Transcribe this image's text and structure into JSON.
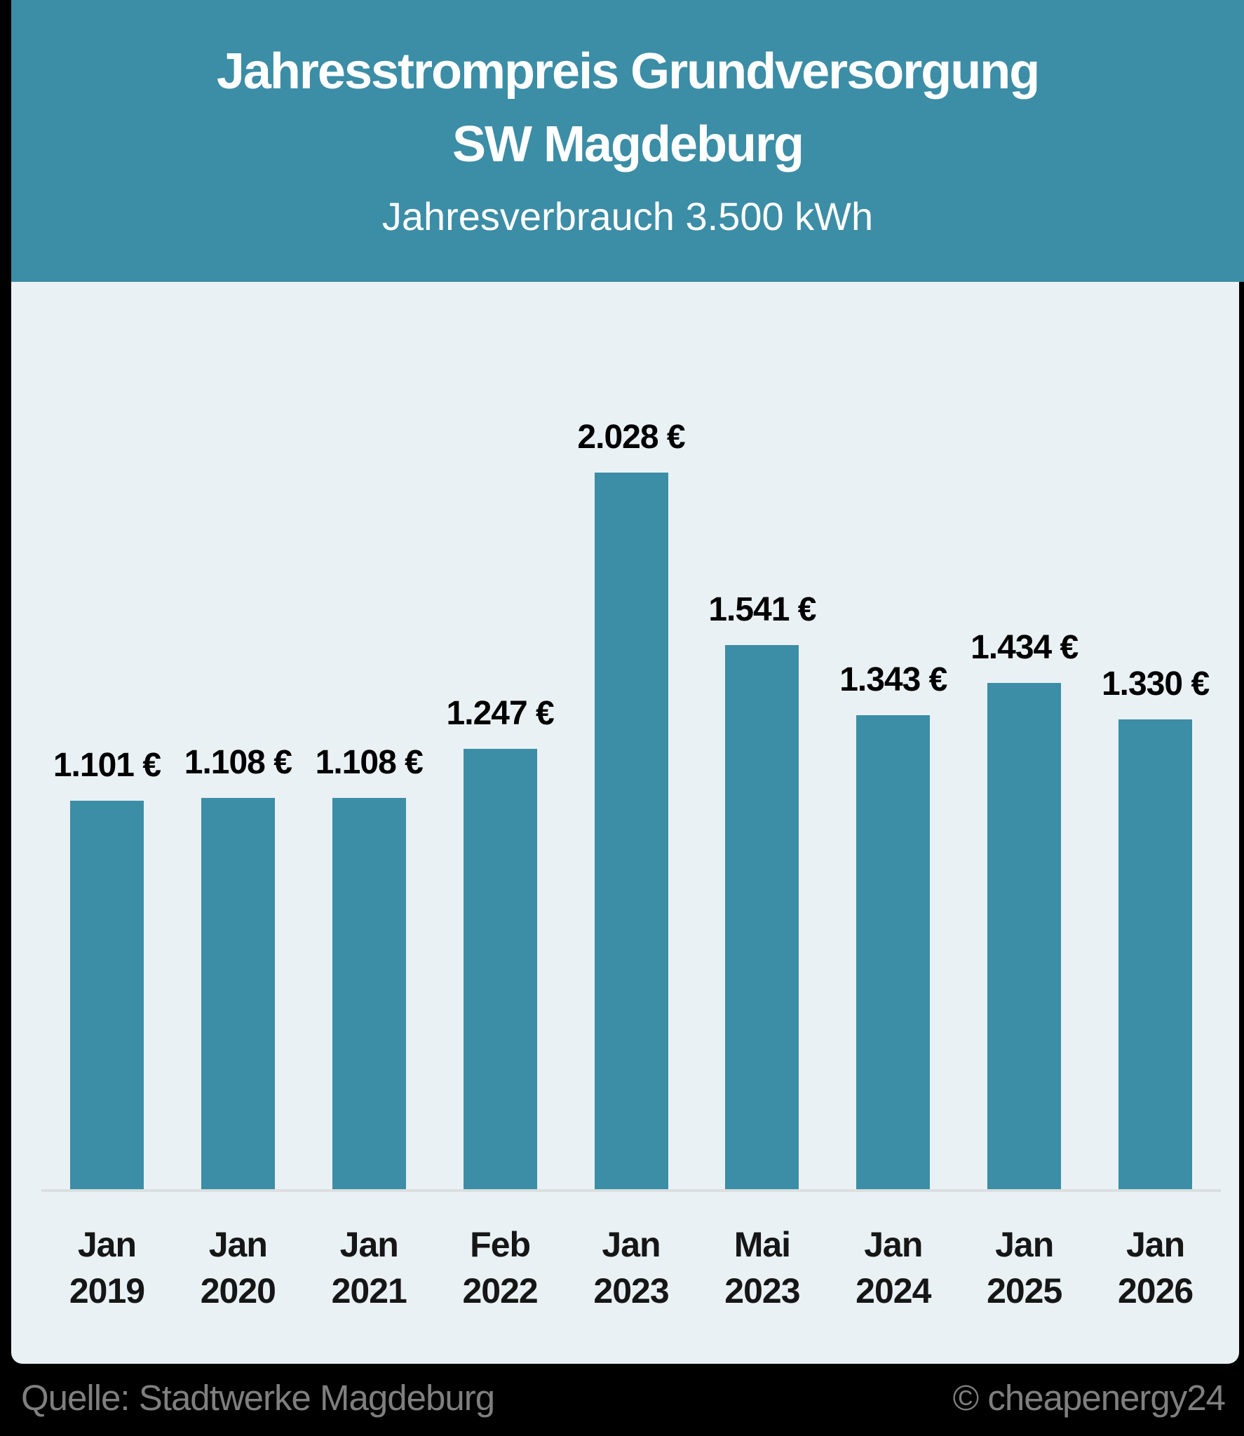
{
  "header": {
    "title_line1": "Jahresstrompreis Grundversorgung",
    "title_line2": "SW Magdeburg",
    "subtitle": "Jahresverbrauch 3.500 kWh"
  },
  "chart_data": {
    "type": "bar",
    "title": "Jahresstrompreis Grundversorgung SW Magdeburg",
    "subtitle": "Jahresverbrauch 3.500 kWh",
    "categories": [
      {
        "month": "Jan",
        "year": "2019"
      },
      {
        "month": "Jan",
        "year": "2020"
      },
      {
        "month": "Jan",
        "year": "2021"
      },
      {
        "month": "Feb",
        "year": "2022"
      },
      {
        "month": "Jan",
        "year": "2023"
      },
      {
        "month": "Mai",
        "year": "2023"
      },
      {
        "month": "Jan",
        "year": "2024"
      },
      {
        "month": "Jan",
        "year": "2025"
      },
      {
        "month": "Jan",
        "year": "2026"
      }
    ],
    "values": [
      1101,
      1108,
      1108,
      1247,
      2028,
      1541,
      1343,
      1434,
      1330
    ],
    "value_labels": [
      "1.101 €",
      "1.108 €",
      "1.108 €",
      "1.247 €",
      "2.028 €",
      "1.541 €",
      "1.343 €",
      "1.434 €",
      "1.330 €"
    ],
    "unit": "€",
    "ylim": [
      0,
      2028
    ],
    "grid": false,
    "legend": false,
    "bar_color": "#3c8da6",
    "axis_line_color": "#dcdedf"
  },
  "footer": {
    "source": "Quelle: Stadtwerke Magdeburg",
    "copyright": "© cheapenergy24"
  },
  "colors": {
    "header_background": "#3c8da6",
    "panel_background": "#e9f1f4",
    "page_background": "#000000",
    "title_text": "#ffffff",
    "label_text": "#000000",
    "footer_text": "#7f7f7f"
  }
}
